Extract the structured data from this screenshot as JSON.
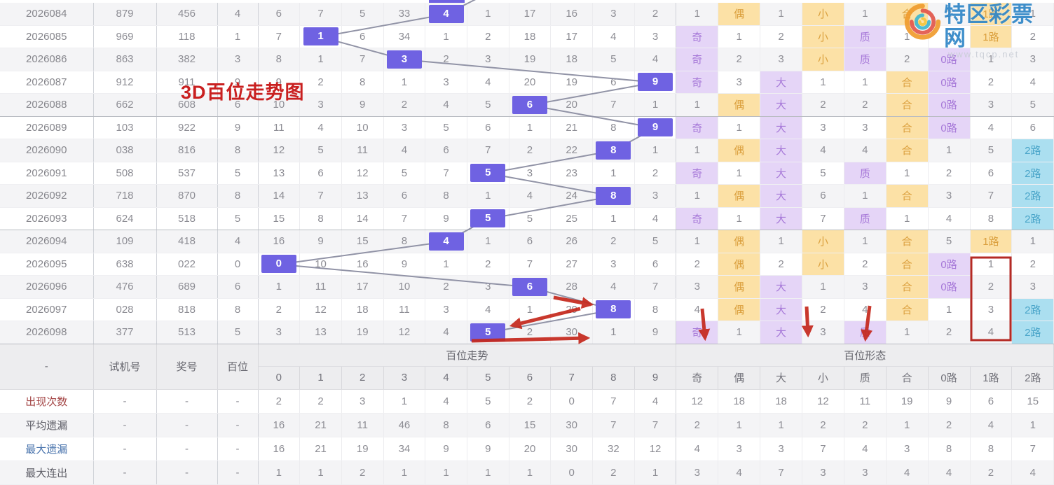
{
  "title": "3D百位走势图",
  "watermark": {
    "site_name": "特区彩票网",
    "site_url": "www.tqcp.net"
  },
  "colors": {
    "highlight_box": "#6f62e2",
    "odd_purple": "#e5d5f7",
    "even_yellow": "#fce1a6",
    "road2_cyan": "#abdff0",
    "annotation_red": "#c5281c",
    "title_red": "#c92020"
  },
  "table": {
    "left_headers": [
      "-",
      "试机号",
      "奖号",
      "百位"
    ],
    "trend_group_label": "百位走势",
    "form_group_label": "百位形态",
    "trend_cols": [
      "0",
      "1",
      "2",
      "3",
      "4",
      "5",
      "6",
      "7",
      "8",
      "9"
    ],
    "form_cols": [
      "奇",
      "偶",
      "大",
      "小",
      "质",
      "合",
      "0路",
      "1路",
      "2路"
    ],
    "rows": [
      {
        "period": "2026084",
        "trial": "879",
        "win": "456",
        "digit": 4,
        "trend": [
          6,
          7,
          5,
          33,
          4,
          1,
          17,
          16,
          3,
          2
        ],
        "form": [
          1,
          "偶",
          1,
          "小",
          1,
          "合",
          2,
          "1路",
          1
        ]
      },
      {
        "period": "2026085",
        "trial": "969",
        "win": "118",
        "digit": 1,
        "trend": [
          7,
          1,
          6,
          34,
          1,
          2,
          18,
          17,
          4,
          3
        ],
        "form": [
          "奇",
          1,
          2,
          "小",
          "质",
          1,
          3,
          "1路",
          2
        ]
      },
      {
        "period": "2026086",
        "trial": "863",
        "win": "382",
        "digit": 3,
        "trend": [
          8,
          1,
          7,
          3,
          2,
          3,
          19,
          18,
          5,
          4
        ],
        "form": [
          "奇",
          2,
          3,
          "小",
          "质",
          2,
          "0路",
          1,
          3
        ]
      },
      {
        "period": "2026087",
        "trial": "912",
        "win": "911",
        "digit": 9,
        "trend": [
          9,
          2,
          8,
          1,
          3,
          4,
          20,
          19,
          6,
          9
        ],
        "form": [
          "奇",
          3,
          "大",
          1,
          1,
          "合",
          "0路",
          2,
          4
        ]
      },
      {
        "period": "2026088",
        "trial": "662",
        "win": "608",
        "digit": 6,
        "trend": [
          10,
          3,
          9,
          2,
          4,
          5,
          6,
          20,
          7,
          1
        ],
        "form": [
          1,
          "偶",
          "大",
          2,
          2,
          "合",
          "0路",
          3,
          5
        ]
      },
      {
        "period": "2026089",
        "trial": "103",
        "win": "922",
        "digit": 9,
        "trend": [
          11,
          4,
          10,
          3,
          5,
          6,
          1,
          21,
          8,
          9
        ],
        "form": [
          "奇",
          1,
          "大",
          3,
          3,
          "合",
          "0路",
          4,
          6
        ]
      },
      {
        "period": "2026090",
        "trial": "038",
        "win": "816",
        "digit": 8,
        "trend": [
          12,
          5,
          11,
          4,
          6,
          7,
          2,
          22,
          8,
          1
        ],
        "form": [
          1,
          "偶",
          "大",
          4,
          4,
          "合",
          1,
          5,
          "2路"
        ]
      },
      {
        "period": "2026091",
        "trial": "508",
        "win": "537",
        "digit": 5,
        "trend": [
          13,
          6,
          12,
          5,
          7,
          5,
          3,
          23,
          1,
          2
        ],
        "form": [
          "奇",
          1,
          "大",
          5,
          "质",
          1,
          2,
          6,
          "2路"
        ]
      },
      {
        "period": "2026092",
        "trial": "718",
        "win": "870",
        "digit": 8,
        "trend": [
          14,
          7,
          13,
          6,
          8,
          1,
          4,
          24,
          8,
          3
        ],
        "form": [
          1,
          "偶",
          "大",
          6,
          1,
          "合",
          3,
          7,
          "2路"
        ]
      },
      {
        "period": "2026093",
        "trial": "624",
        "win": "518",
        "digit": 5,
        "trend": [
          15,
          8,
          14,
          7,
          9,
          5,
          5,
          25,
          1,
          4
        ],
        "form": [
          "奇",
          1,
          "大",
          7,
          "质",
          1,
          4,
          8,
          "2路"
        ]
      },
      {
        "period": "2026094",
        "trial": "109",
        "win": "418",
        "digit": 4,
        "trend": [
          16,
          9,
          15,
          8,
          4,
          1,
          6,
          26,
          2,
          5
        ],
        "form": [
          1,
          "偶",
          1,
          "小",
          1,
          "合",
          5,
          "1路",
          1
        ]
      },
      {
        "period": "2026095",
        "trial": "638",
        "win": "022",
        "digit": 0,
        "trend": [
          0,
          10,
          16,
          9,
          1,
          2,
          7,
          27,
          3,
          6
        ],
        "form": [
          2,
          "偶",
          2,
          "小",
          2,
          "合",
          "0路",
          1,
          2
        ]
      },
      {
        "period": "2026096",
        "trial": "476",
        "win": "689",
        "digit": 6,
        "trend": [
          1,
          11,
          17,
          10,
          2,
          3,
          6,
          28,
          4,
          7
        ],
        "form": [
          3,
          "偶",
          "大",
          1,
          3,
          "合",
          "0路",
          2,
          3
        ]
      },
      {
        "period": "2026097",
        "trial": "028",
        "win": "818",
        "digit": 8,
        "trend": [
          2,
          12,
          18,
          11,
          3,
          4,
          1,
          29,
          8,
          8
        ],
        "form": [
          4,
          "偶",
          "大",
          2,
          4,
          "合",
          1,
          3,
          "2路"
        ]
      },
      {
        "period": "2026098",
        "trial": "377",
        "win": "513",
        "digit": 5,
        "trend": [
          3,
          13,
          19,
          12,
          4,
          5,
          2,
          30,
          1,
          9
        ],
        "form": [
          "奇",
          1,
          "大",
          3,
          "质",
          1,
          2,
          4,
          "2路"
        ]
      }
    ],
    "footer_rows": [
      {
        "label": "出现次数",
        "style": "red",
        "dashes": [
          "-",
          "-",
          "-"
        ],
        "trend": [
          2,
          2,
          3,
          1,
          4,
          5,
          2,
          0,
          7,
          4
        ],
        "form": [
          12,
          18,
          18,
          12,
          11,
          19,
          9,
          6,
          15
        ]
      },
      {
        "label": "平均遗漏",
        "style": "gray",
        "dashes": [
          "-",
          "-",
          "-"
        ],
        "trend": [
          16,
          21,
          11,
          46,
          8,
          6,
          15,
          30,
          7,
          7
        ],
        "form": [
          2,
          1,
          1,
          2,
          2,
          1,
          2,
          4,
          1
        ]
      },
      {
        "label": "最大遗漏",
        "style": "blue",
        "dashes": [
          "-",
          "-",
          "-"
        ],
        "trend": [
          16,
          21,
          19,
          34,
          9,
          9,
          20,
          30,
          32,
          12
        ],
        "form": [
          4,
          3,
          3,
          7,
          4,
          3,
          8,
          8,
          7
        ]
      },
      {
        "label": "最大连出",
        "style": "gray",
        "dashes": [
          "-",
          "-",
          "-"
        ],
        "trend": [
          1,
          1,
          2,
          1,
          1,
          1,
          1,
          0,
          2,
          1
        ],
        "form": [
          3,
          4,
          7,
          3,
          3,
          4,
          4,
          2,
          4
        ]
      }
    ],
    "footer_corner_label": "-"
  },
  "chart_data": {
    "type": "table",
    "title": "3D百位走势图",
    "description": "3D lottery hundreds-digit trend chart, periods 2026084-2026098",
    "hundreds_digit_series": [
      4,
      1,
      3,
      9,
      6,
      9,
      8,
      5,
      8,
      5,
      4,
      0,
      6,
      8,
      5
    ],
    "appearance_counts_0_9": [
      2,
      2,
      3,
      1,
      4,
      5,
      2,
      0,
      7,
      4
    ],
    "appearance_counts_forms": {
      "奇": 12,
      "偶": 18,
      "大": 18,
      "小": 12,
      "质": 11,
      "合": 19,
      "0路": 9,
      "1路": 6,
      "2路": 15
    }
  }
}
